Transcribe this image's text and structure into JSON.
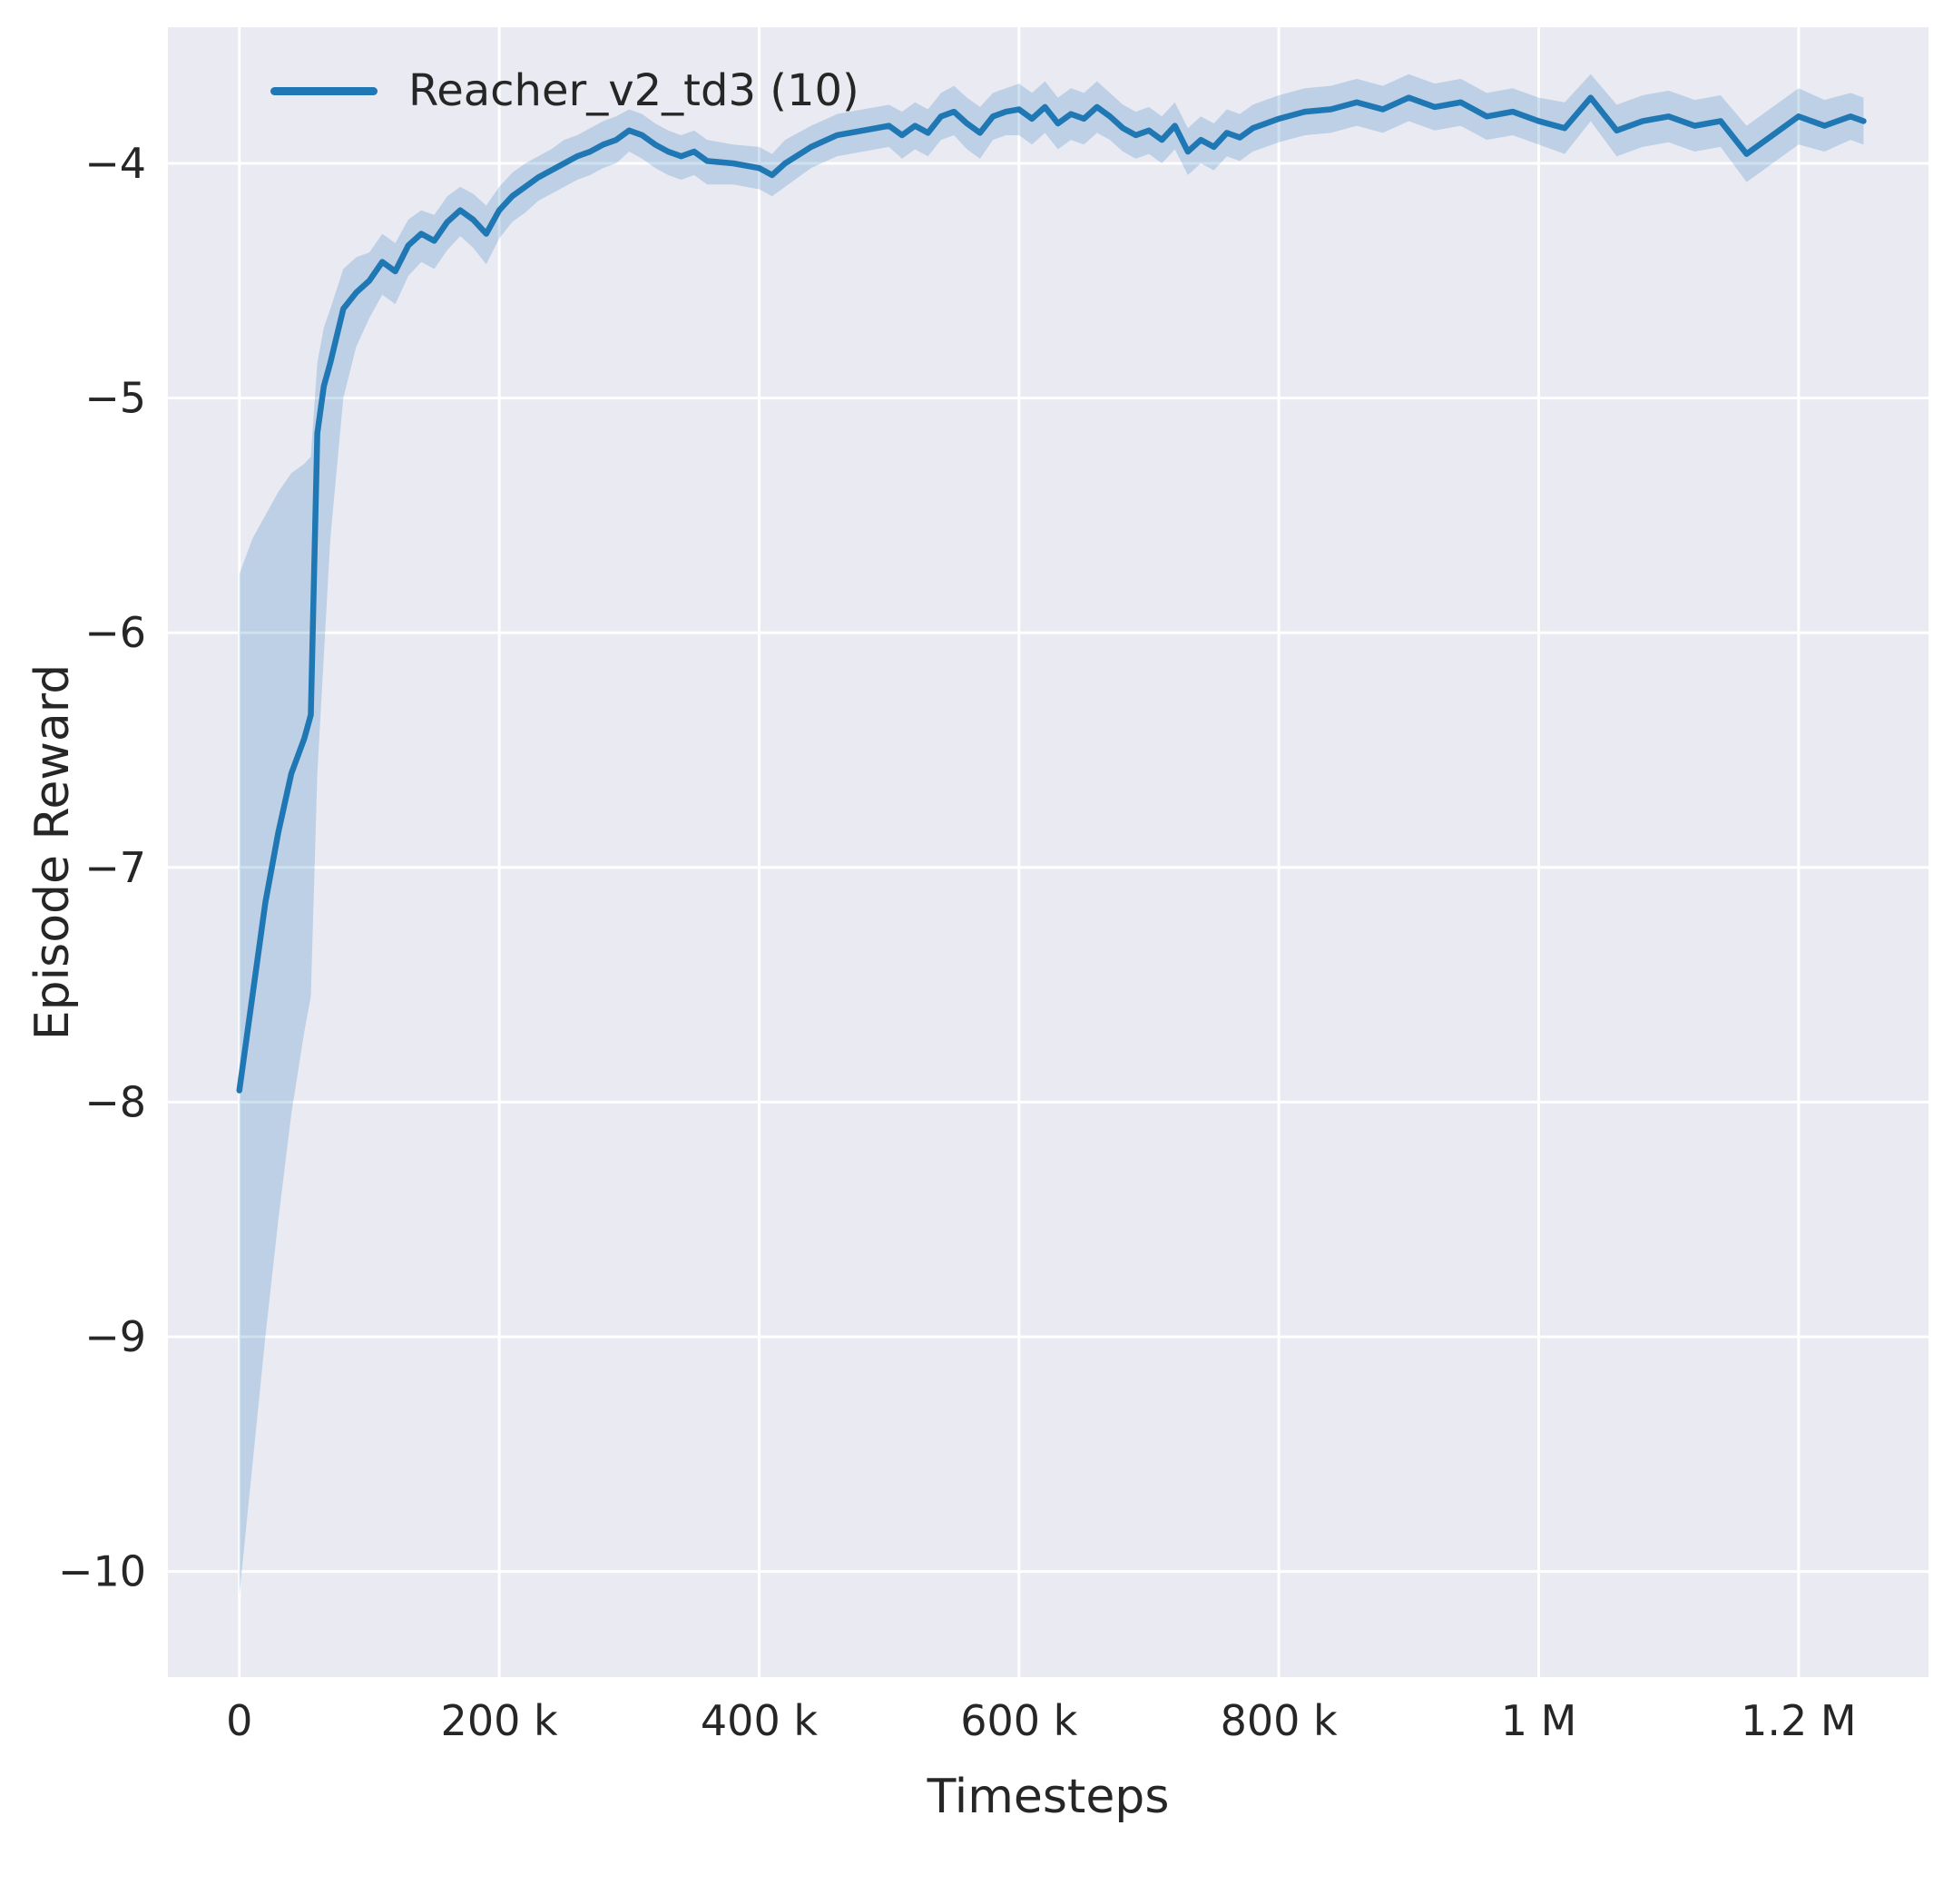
{
  "figure": {
    "background": "#ffffff",
    "plot_background": "#eaeaf2",
    "grid_color": "#ffffff",
    "text_color": "#262626"
  },
  "legend": {
    "label": "Reacher_v2_td3 (10)",
    "line_color": "#1f77b4"
  },
  "chart_data": {
    "type": "line",
    "title": "",
    "xlabel": "Timesteps",
    "ylabel": "Episode Reward",
    "xlim": [
      -55000,
      1300000
    ],
    "ylim": [
      -10.45,
      -3.42
    ],
    "grid": true,
    "legend_position": "upper left",
    "x_ticks": {
      "values": [
        0,
        200000,
        400000,
        600000,
        800000,
        1000000,
        1200000
      ],
      "labels": [
        "0",
        "200 k",
        "400 k",
        "600 k",
        "800 k",
        "1 M",
        "1.2 M"
      ]
    },
    "y_ticks": {
      "values": [
        -4,
        -5,
        -6,
        -7,
        -8,
        -9,
        -10
      ],
      "labels": [
        "−4",
        "−5",
        "−6",
        "−7",
        "−8",
        "−9",
        "−10"
      ]
    },
    "series": [
      {
        "name": "Reacher_v2_td3 (10)",
        "color": "#1f77b4",
        "band_alpha": 0.22,
        "x": [
          0,
          10000,
          20000,
          30000,
          40000,
          50000,
          55000,
          60000,
          65000,
          70000,
          80000,
          90000,
          100000,
          110000,
          120000,
          130000,
          140000,
          150000,
          160000,
          170000,
          180000,
          190000,
          200000,
          210000,
          220000,
          230000,
          240000,
          250000,
          260000,
          270000,
          280000,
          290000,
          300000,
          310000,
          320000,
          330000,
          340000,
          350000,
          360000,
          380000,
          400000,
          410000,
          420000,
          440000,
          460000,
          480000,
          500000,
          510000,
          520000,
          530000,
          540000,
          550000,
          560000,
          570000,
          580000,
          590000,
          600000,
          610000,
          620000,
          630000,
          640000,
          650000,
          660000,
          670000,
          680000,
          690000,
          700000,
          710000,
          720000,
          730000,
          740000,
          750000,
          760000,
          770000,
          780000,
          790000,
          800000,
          820000,
          840000,
          860000,
          880000,
          900000,
          920000,
          940000,
          960000,
          980000,
          1000000,
          1020000,
          1040000,
          1060000,
          1080000,
          1100000,
          1120000,
          1140000,
          1160000,
          1180000,
          1200000,
          1220000,
          1240000,
          1250000
        ],
        "mean": [
          -7.95,
          -7.55,
          -7.15,
          -6.85,
          -6.6,
          -6.45,
          -6.35,
          -5.15,
          -4.95,
          -4.85,
          -4.62,
          -4.55,
          -4.5,
          -4.42,
          -4.46,
          -4.35,
          -4.3,
          -4.33,
          -4.25,
          -4.2,
          -4.24,
          -4.3,
          -4.2,
          -4.14,
          -4.1,
          -4.06,
          -4.03,
          -4.0,
          -3.97,
          -3.95,
          -3.92,
          -3.9,
          -3.86,
          -3.88,
          -3.92,
          -3.95,
          -3.97,
          -3.95,
          -3.99,
          -4.0,
          -4.02,
          -4.05,
          -4.0,
          -3.93,
          -3.88,
          -3.86,
          -3.84,
          -3.88,
          -3.84,
          -3.87,
          -3.8,
          -3.78,
          -3.83,
          -3.87,
          -3.8,
          -3.78,
          -3.77,
          -3.81,
          -3.76,
          -3.83,
          -3.79,
          -3.81,
          -3.76,
          -3.8,
          -3.85,
          -3.88,
          -3.86,
          -3.9,
          -3.84,
          -3.95,
          -3.9,
          -3.93,
          -3.87,
          -3.89,
          -3.85,
          -3.83,
          -3.81,
          -3.78,
          -3.77,
          -3.74,
          -3.77,
          -3.72,
          -3.76,
          -3.74,
          -3.8,
          -3.78,
          -3.82,
          -3.85,
          -3.72,
          -3.86,
          -3.82,
          -3.8,
          -3.84,
          -3.82,
          -3.96,
          -3.88,
          -3.8,
          -3.84,
          -3.8,
          -3.82
        ],
        "band_high": [
          -5.75,
          -5.6,
          -5.5,
          -5.4,
          -5.32,
          -5.28,
          -5.25,
          -4.85,
          -4.7,
          -4.62,
          -4.45,
          -4.4,
          -4.38,
          -4.3,
          -4.34,
          -4.24,
          -4.2,
          -4.22,
          -4.14,
          -4.1,
          -4.13,
          -4.18,
          -4.1,
          -4.04,
          -4.0,
          -3.97,
          -3.94,
          -3.9,
          -3.88,
          -3.85,
          -3.82,
          -3.8,
          -3.77,
          -3.79,
          -3.83,
          -3.86,
          -3.88,
          -3.86,
          -3.9,
          -3.92,
          -3.93,
          -3.96,
          -3.9,
          -3.84,
          -3.79,
          -3.77,
          -3.75,
          -3.78,
          -3.74,
          -3.77,
          -3.7,
          -3.67,
          -3.72,
          -3.76,
          -3.7,
          -3.68,
          -3.66,
          -3.7,
          -3.65,
          -3.72,
          -3.68,
          -3.7,
          -3.65,
          -3.7,
          -3.75,
          -3.78,
          -3.76,
          -3.8,
          -3.74,
          -3.85,
          -3.8,
          -3.83,
          -3.77,
          -3.79,
          -3.75,
          -3.73,
          -3.71,
          -3.68,
          -3.67,
          -3.64,
          -3.67,
          -3.62,
          -3.66,
          -3.64,
          -3.7,
          -3.68,
          -3.72,
          -3.74,
          -3.62,
          -3.75,
          -3.71,
          -3.69,
          -3.73,
          -3.71,
          -3.84,
          -3.76,
          -3.68,
          -3.73,
          -3.7,
          -3.72
        ],
        "band_low": [
          -10.1,
          -9.55,
          -9.0,
          -8.5,
          -8.05,
          -7.7,
          -7.55,
          -6.6,
          -6.1,
          -5.6,
          -5.0,
          -4.78,
          -4.66,
          -4.56,
          -4.6,
          -4.48,
          -4.42,
          -4.45,
          -4.37,
          -4.31,
          -4.36,
          -4.43,
          -4.32,
          -4.25,
          -4.21,
          -4.16,
          -4.13,
          -4.1,
          -4.07,
          -4.05,
          -4.02,
          -4.0,
          -3.95,
          -3.98,
          -4.02,
          -4.05,
          -4.07,
          -4.05,
          -4.09,
          -4.09,
          -4.11,
          -4.14,
          -4.1,
          -4.02,
          -3.97,
          -3.95,
          -3.93,
          -3.98,
          -3.94,
          -3.97,
          -3.9,
          -3.88,
          -3.94,
          -3.98,
          -3.9,
          -3.88,
          -3.88,
          -3.92,
          -3.87,
          -3.94,
          -3.9,
          -3.92,
          -3.87,
          -3.9,
          -3.95,
          -3.98,
          -3.96,
          -4.0,
          -3.94,
          -4.05,
          -4.0,
          -4.03,
          -3.97,
          -3.99,
          -3.95,
          -3.93,
          -3.91,
          -3.88,
          -3.87,
          -3.84,
          -3.87,
          -3.82,
          -3.86,
          -3.84,
          -3.9,
          -3.88,
          -3.92,
          -3.96,
          -3.82,
          -3.97,
          -3.93,
          -3.91,
          -3.95,
          -3.93,
          -4.08,
          -4.0,
          -3.92,
          -3.95,
          -3.9,
          -3.92
        ]
      }
    ]
  }
}
